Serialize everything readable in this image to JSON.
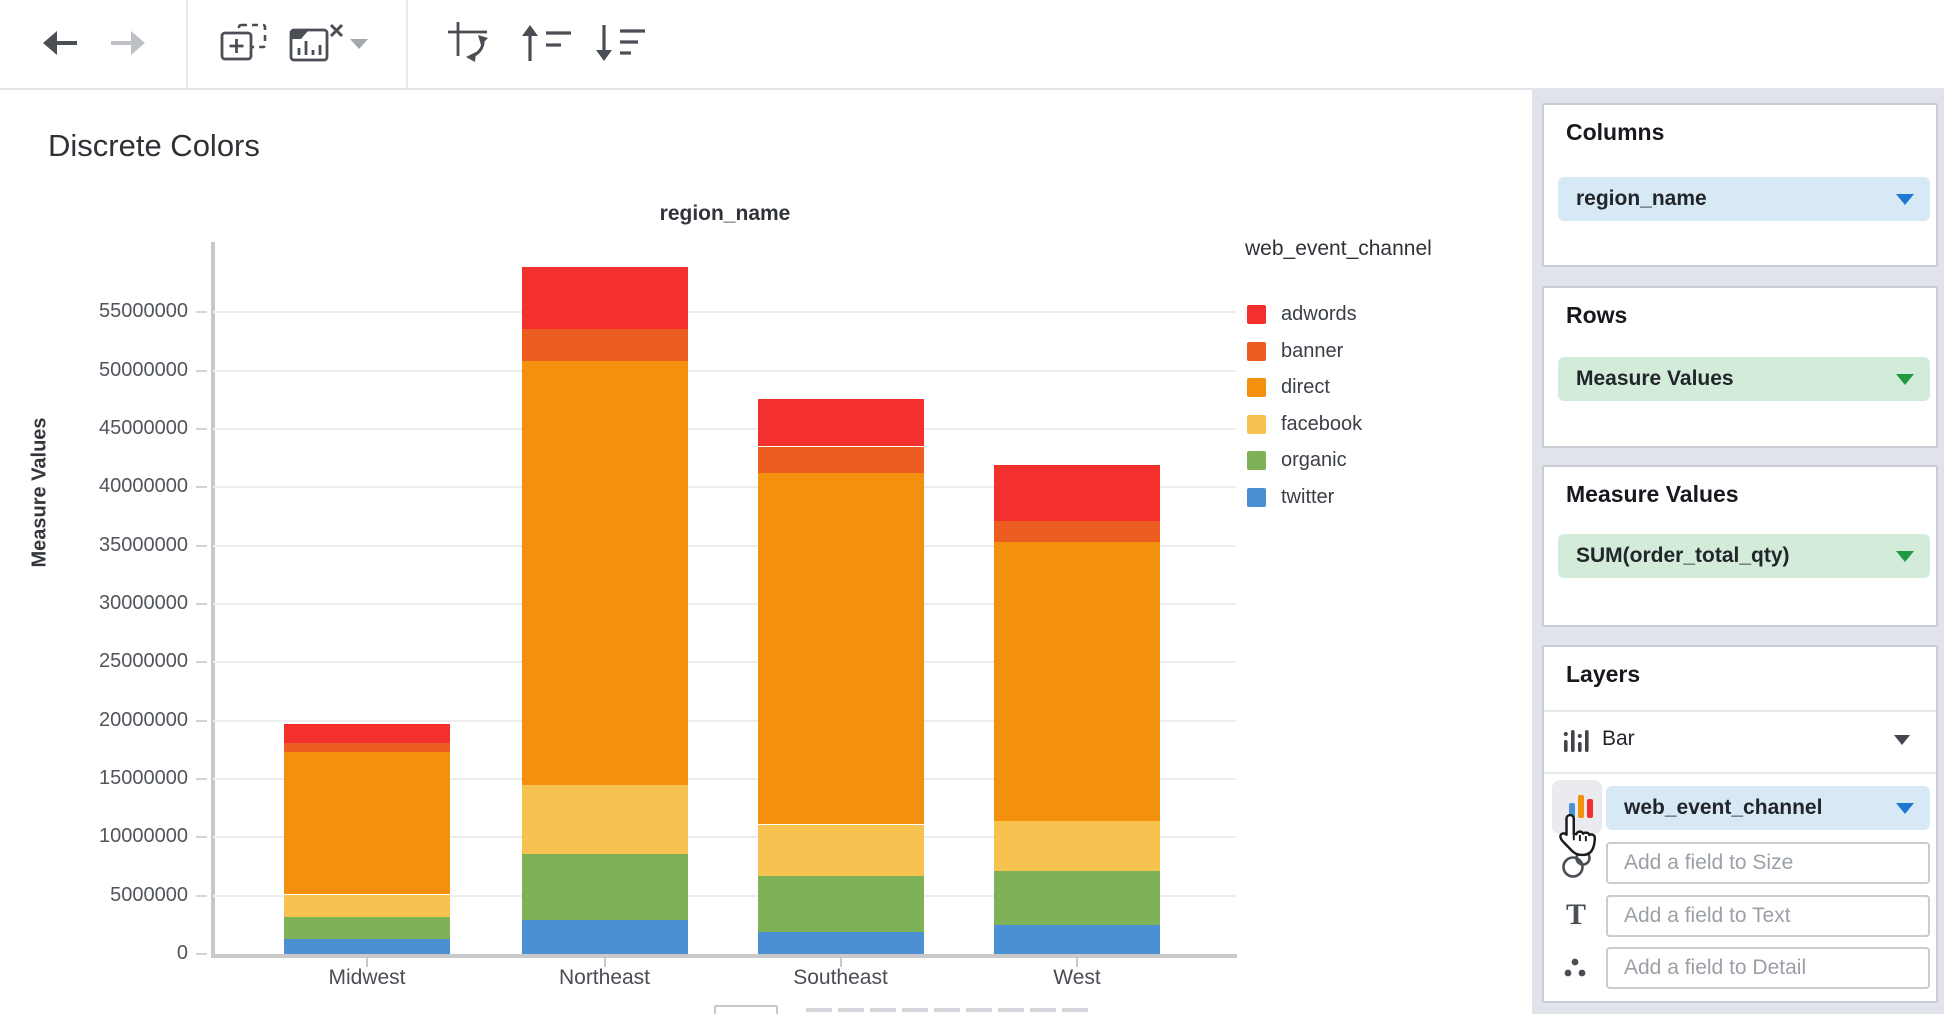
{
  "page": {
    "title": "Discrete Colors"
  },
  "toolbar": {
    "icons": [
      {
        "name": "back-arrow",
        "enabled": true
      },
      {
        "name": "forward-arrow",
        "enabled": false
      },
      {
        "name": "add-chart",
        "enabled": true
      },
      {
        "name": "remove-chart",
        "enabled": true,
        "has_caret": true
      },
      {
        "name": "swap-axes",
        "enabled": true
      },
      {
        "name": "sort-ascending",
        "enabled": true
      },
      {
        "name": "sort-descending",
        "enabled": true
      }
    ]
  },
  "chart_data": {
    "type": "bar",
    "stacked": true,
    "top_axis_title": "region_name",
    "ylabel": "Measure Values",
    "categories": [
      "Midwest",
      "Northeast",
      "Southeast",
      "West"
    ],
    "series": [
      {
        "name": "twitter",
        "color": "#4A90D2",
        "values": [
          1300000,
          2900000,
          1900000,
          2500000
        ]
      },
      {
        "name": "organic",
        "color": "#7DB257",
        "values": [
          1900000,
          5700000,
          4800000,
          4600000
        ]
      },
      {
        "name": "facebook",
        "color": "#F6C350",
        "values": [
          1900000,
          5900000,
          4400000,
          4300000
        ]
      },
      {
        "name": "direct",
        "color": "#F3910F",
        "values": [
          12200000,
          36300000,
          30100000,
          23900000
        ]
      },
      {
        "name": "banner",
        "color": "#ED5C21",
        "values": [
          800000,
          2800000,
          2300000,
          1800000
        ]
      },
      {
        "name": "adwords",
        "color": "#F3302E",
        "values": [
          1600000,
          5300000,
          4100000,
          4800000
        ]
      }
    ],
    "yticks": [
      0,
      5000000,
      10000000,
      15000000,
      20000000,
      25000000,
      30000000,
      35000000,
      40000000,
      45000000,
      50000000,
      55000000
    ],
    "ylim": [
      0,
      61000000
    ],
    "grid": true,
    "legend": {
      "title": "web_event_channel",
      "position": "right",
      "items": [
        {
          "label": "adwords",
          "color": "#F3302E"
        },
        {
          "label": "banner",
          "color": "#ED5C21"
        },
        {
          "label": "direct",
          "color": "#F3910F"
        },
        {
          "label": "facebook",
          "color": "#F6C350"
        },
        {
          "label": "organic",
          "color": "#7DB257"
        },
        {
          "label": "twitter",
          "color": "#4A90D2"
        }
      ]
    }
  },
  "panel": {
    "columns": {
      "heading": "Columns",
      "pill_label": "region_name"
    },
    "rows": {
      "heading": "Rows",
      "pill_label": "Measure Values"
    },
    "measure_values": {
      "heading": "Measure Values",
      "pill_label": "SUM(order_total_qty)"
    },
    "layers": {
      "heading": "Layers",
      "layer_type": "Bar",
      "color_pill_label": "web_event_channel",
      "size_placeholder": "Add a field to Size",
      "text_placeholder": "Add a field to Text",
      "detail_placeholder": "Add a field to Detail"
    }
  },
  "colors": {
    "dimension_pill_bg": "#D8E9F6",
    "dimension_caret": "#1D78D3",
    "measure_pill_bg": "#D3EBD9",
    "measure_caret": "#1F9A43",
    "panel_bg": "#E1E3EA",
    "card_border": "#C9CCD3",
    "grid_line": "#EDEDED",
    "axis_line": "#C9C9C9"
  }
}
